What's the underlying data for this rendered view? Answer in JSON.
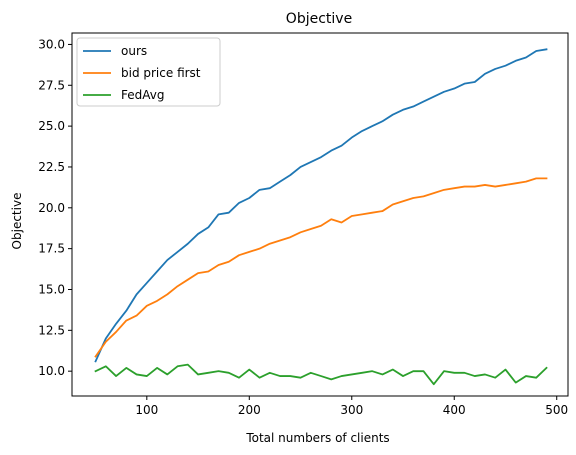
{
  "chart_data": {
    "type": "line",
    "title": "Objective",
    "xlabel": "Total numbers of clients",
    "ylabel": "Objective",
    "xlim": [
      27,
      511
    ],
    "ylim": [
      8.48,
      30.7
    ],
    "x_ticks": [
      100,
      200,
      300,
      400,
      500
    ],
    "x_tick_labels": [
      "100",
      "200",
      "300",
      "400",
      "500"
    ],
    "y_ticks": [
      10.0,
      12.5,
      15.0,
      17.5,
      20.0,
      22.5,
      25.0,
      27.5,
      30.0
    ],
    "y_tick_labels": [
      "10.0",
      "12.5",
      "15.0",
      "17.5",
      "20.0",
      "22.5",
      "25.0",
      "27.5",
      "30.0"
    ],
    "grid": false,
    "legend_position": "top-left",
    "x": [
      50,
      60,
      70,
      80,
      90,
      100,
      110,
      120,
      130,
      140,
      150,
      160,
      170,
      180,
      190,
      200,
      210,
      220,
      230,
      240,
      250,
      260,
      270,
      280,
      290,
      300,
      310,
      320,
      330,
      340,
      350,
      360,
      370,
      380,
      390,
      400,
      410,
      420,
      430,
      440,
      450,
      460,
      470,
      480,
      490
    ],
    "series": [
      {
        "name": "ours",
        "color": "#1f77b4",
        "values": [
          10.6,
          12.0,
          12.9,
          13.7,
          14.7,
          15.4,
          16.1,
          16.8,
          17.3,
          17.8,
          18.4,
          18.8,
          19.6,
          19.7,
          20.3,
          20.6,
          21.1,
          21.2,
          21.6,
          22.0,
          22.5,
          22.8,
          23.1,
          23.5,
          23.8,
          24.3,
          24.7,
          25.0,
          25.3,
          25.7,
          26.0,
          26.2,
          26.5,
          26.8,
          27.1,
          27.3,
          27.6,
          27.7,
          28.2,
          28.5,
          28.7,
          29.0,
          29.2,
          29.6,
          29.7
        ]
      },
      {
        "name": "bid price first",
        "color": "#ff7f0e",
        "values": [
          10.9,
          11.8,
          12.4,
          13.1,
          13.4,
          14.0,
          14.3,
          14.7,
          15.2,
          15.6,
          16.0,
          16.1,
          16.5,
          16.7,
          17.1,
          17.3,
          17.5,
          17.8,
          18.0,
          18.2,
          18.5,
          18.7,
          18.9,
          19.3,
          19.1,
          19.5,
          19.6,
          19.7,
          19.8,
          20.2,
          20.4,
          20.6,
          20.7,
          20.9,
          21.1,
          21.2,
          21.3,
          21.3,
          21.4,
          21.3,
          21.4,
          21.5,
          21.6,
          21.8,
          21.8
        ]
      },
      {
        "name": "FedAvg",
        "color": "#2ca02c",
        "values": [
          10.0,
          10.3,
          9.7,
          10.2,
          9.8,
          9.7,
          10.2,
          9.8,
          10.3,
          10.4,
          9.8,
          9.9,
          10.0,
          9.9,
          9.6,
          10.1,
          9.6,
          9.9,
          9.7,
          9.7,
          9.6,
          9.9,
          9.7,
          9.5,
          9.7,
          9.8,
          9.9,
          10.0,
          9.8,
          10.1,
          9.7,
          10.0,
          10.0,
          9.2,
          10.0,
          9.9,
          9.9,
          9.7,
          9.8,
          9.6,
          10.1,
          9.3,
          9.7,
          9.6,
          10.2
        ]
      }
    ]
  }
}
